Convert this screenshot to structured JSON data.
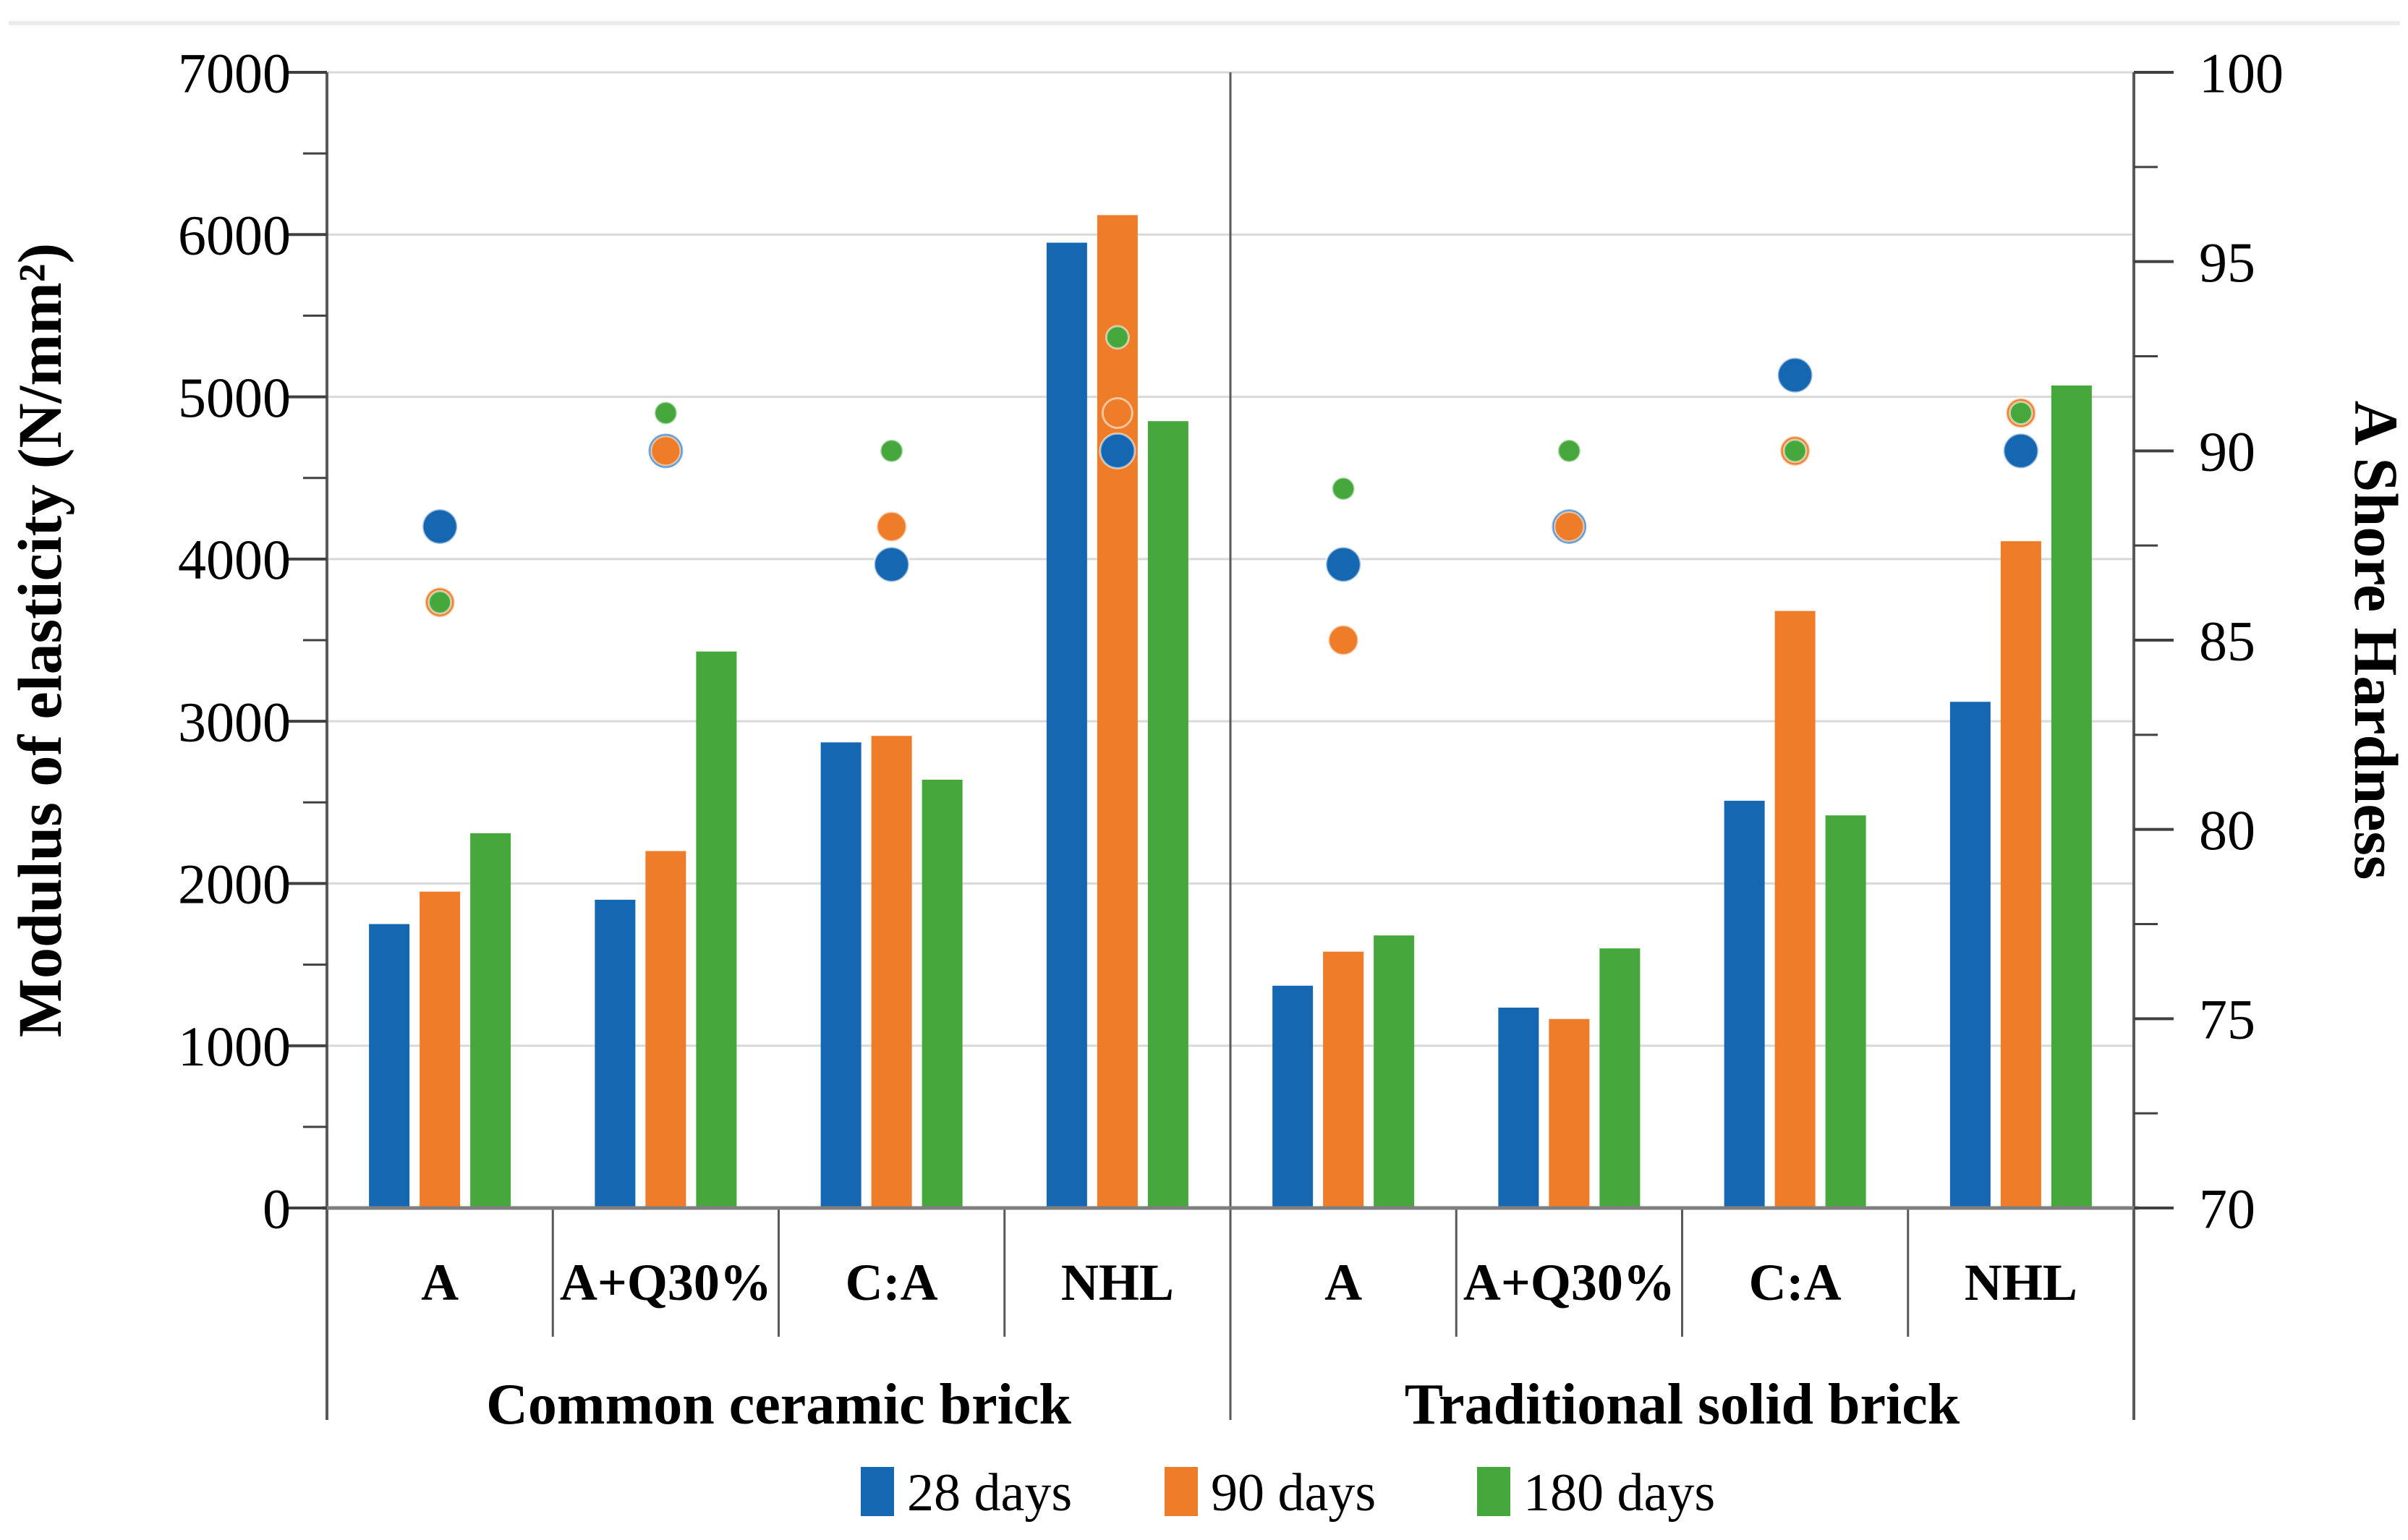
{
  "chart_data": {
    "type": "bar-scatter-combo",
    "title": "",
    "series": [
      "28 days",
      "90 days",
      "180 days"
    ],
    "legend": [
      {
        "label": "28 days",
        "color": "#1667B1"
      },
      {
        "label": "90 days",
        "color": "#EE7C28"
      },
      {
        "label": "180 days",
        "color": "#45A73C"
      }
    ],
    "left_axis": {
      "label": "Modulus of elasticity (N/mm²)",
      "min": 0,
      "max": 7000,
      "major": 1000,
      "minor": 500,
      "tick_labels": [
        "0",
        "1000",
        "2000",
        "3000",
        "4000",
        "5000",
        "6000",
        "7000"
      ]
    },
    "right_axis": {
      "label": "A Shore Hardness",
      "min": 70,
      "max": 100,
      "major": 5,
      "minor": 2.5,
      "tick_labels": [
        "70",
        "75",
        "80",
        "85",
        "90",
        "95",
        "100"
      ]
    },
    "grid": "horizontal gridlines every 1000, light gray",
    "legend_position": "bottom center",
    "groups": [
      {
        "label": "Common ceramic brick",
        "categories": [
          {
            "label": "A",
            "bars": [
              1750,
              1950,
              2310
            ],
            "hardness": [
              88,
              86,
              86
            ]
          },
          {
            "label": "A+Q30%",
            "bars": [
              1900,
              2200,
              3430
            ],
            "hardness": [
              90,
              90,
              91
            ]
          },
          {
            "label": "C:A",
            "bars": [
              2870,
              2910,
              2640
            ],
            "hardness": [
              87,
              88,
              90
            ]
          },
          {
            "label": "NHL",
            "bars": [
              5950,
              6120,
              4850
            ],
            "hardness": [
              90,
              91,
              93
            ]
          }
        ]
      },
      {
        "label": "Traditional solid brick",
        "categories": [
          {
            "label": "A",
            "bars": [
              1370,
              1580,
              1680
            ],
            "hardness": [
              87,
              85,
              89
            ]
          },
          {
            "label": "A+Q30%",
            "bars": [
              1235,
              1165,
              1600
            ],
            "hardness": [
              88,
              88,
              90
            ]
          },
          {
            "label": "C:A",
            "bars": [
              2510,
              3680,
              2420
            ],
            "hardness": [
              92,
              90,
              90
            ]
          },
          {
            "label": "NHL",
            "bars": [
              3120,
              4110,
              5070
            ],
            "hardness": [
              90,
              91,
              91
            ]
          }
        ]
      }
    ],
    "colors": {
      "series": [
        "#1667B1",
        "#EE7C28",
        "#45A73C"
      ],
      "gridline": "#d9d9d9",
      "axis_line": "#595959",
      "bottom_axis_line": "#7f7f7f",
      "tick": "#404040",
      "top_border": "#ececec",
      "text": "#000000"
    }
  }
}
